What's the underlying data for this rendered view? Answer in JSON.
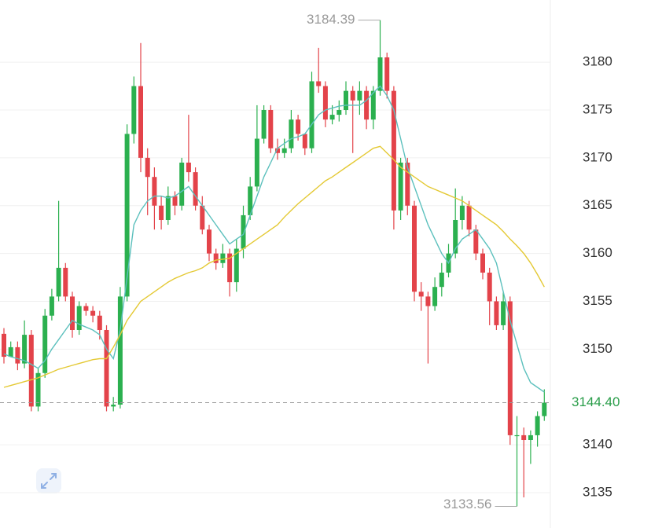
{
  "chart_data": {
    "type": "candlestick",
    "ylim": [
      3131.3,
      3186.5
    ],
    "yticks": [
      3135,
      3140,
      3150,
      3155,
      3160,
      3165,
      3170,
      3175,
      3180
    ],
    "grid": true,
    "up_color": "#2bb04f",
    "down_color": "#e3434a",
    "open": [
      3151.6,
      3149.2,
      3150.2,
      3148.5,
      3151.5,
      3144,
      3147.5,
      3153.5,
      3155.5,
      3158.5,
      3155.5,
      3152,
      3154.5,
      3154,
      3153.5,
      3152,
      3144,
      3144.2,
      3155.5,
      3172.5,
      3177.5,
      3170,
      3168,
      3165,
      3163.5,
      3166,
      3165,
      3169.5,
      3168.5,
      3165,
      3162.5,
      3160,
      3159,
      3160,
      3157,
      3160.5,
      3164,
      3167,
      3172,
      3175,
      3171,
      3170.5,
      3171,
      3174,
      3172.5,
      3171,
      3178,
      3177.5,
      3174,
      3174.5,
      3175,
      3177,
      3176,
      3177,
      3174,
      3177,
      3180.5,
      3177,
      3164.5,
      3169.5,
      3165,
      3156,
      3155.5,
      3154.5,
      3156.5,
      3158,
      3160,
      3163.5,
      3165,
      3162.5,
      3160,
      3158,
      3155,
      3152.5,
      3155,
      3141,
      3141,
      3140.5,
      3141,
      3143
    ],
    "high": [
      3152.2,
      3150.8,
      3150.8,
      3153,
      3152,
      3148,
      3154.2,
      3156.3,
      3165.5,
      3159,
      3156,
      3155,
      3154.8,
      3154.5,
      3154,
      3152.5,
      3145,
      3156.5,
      3173.5,
      3178.5,
      3182,
      3171,
      3169,
      3166,
      3167,
      3166.5,
      3170,
      3174.5,
      3169,
      3166,
      3163,
      3160.5,
      3161,
      3160.5,
      3161.5,
      3165,
      3168,
      3175.5,
      3175.5,
      3175.5,
      3172,
      3172,
      3175,
      3174.5,
      3172.5,
      3179,
      3181.5,
      3178,
      3175.5,
      3176,
      3178,
      3177.5,
      3178,
      3177.5,
      3177.5,
      3184.39,
      3181,
      3177.5,
      3170,
      3170,
      3165.5,
      3157,
      3156,
      3157.5,
      3159,
      3161,
      3166.8,
      3166,
      3165.5,
      3163,
      3160.5,
      3158.5,
      3155.5,
      3156,
      3155.5,
      3143,
      3141.8,
      3141.5,
      3143.5,
      3145.8
    ],
    "low": [
      3148.5,
      3149.5,
      3147.8,
      3148,
      3143.5,
      3143.5,
      3147,
      3153,
      3155,
      3155,
      3151.2,
      3151.5,
      3153.5,
      3152.8,
      3151,
      3143.5,
      3143.5,
      3143.8,
      3155,
      3171.5,
      3168.5,
      3164,
      3162.5,
      3162.5,
      3163,
      3164,
      3164.5,
      3167.5,
      3164.5,
      3162,
      3159.2,
      3158.3,
      3158.5,
      3155.5,
      3156,
      3159.5,
      3163.5,
      3166.5,
      3171.5,
      3170.5,
      3169.8,
      3170,
      3170.5,
      3171.8,
      3170.3,
      3170.5,
      3176.8,
      3173.2,
      3173.5,
      3173.8,
      3174.5,
      3170.5,
      3174.5,
      3173,
      3173,
      3176.5,
      3176.2,
      3162.5,
      3163.5,
      3164,
      3155,
      3154,
      3148.5,
      3154,
      3155.5,
      3157.5,
      3159.5,
      3162.5,
      3161.8,
      3159.3,
      3157.3,
      3152.5,
      3152,
      3152,
      3140,
      3133.56,
      3134.5,
      3138,
      3139.8,
      3142.5
    ],
    "close": [
      3149.2,
      3150.2,
      3148.5,
      3151.5,
      3144,
      3147.5,
      3153.5,
      3155.5,
      3158.5,
      3155.5,
      3152,
      3154.5,
      3154,
      3153.5,
      3152,
      3144,
      3144.2,
      3155.5,
      3172.5,
      3177.5,
      3170,
      3168,
      3165,
      3163.5,
      3166,
      3165,
      3169.5,
      3168.5,
      3165,
      3162.5,
      3160,
      3159,
      3160,
      3157,
      3160.5,
      3164,
      3167,
      3172,
      3175,
      3171,
      3170.5,
      3171,
      3174,
      3172.5,
      3171,
      3178,
      3177.5,
      3174,
      3174.5,
      3175,
      3177,
      3176,
      3177,
      3174,
      3177,
      3180.5,
      3177,
      3164.5,
      3169.5,
      3165,
      3156,
      3155.5,
      3154.5,
      3156.5,
      3158,
      3160,
      3163.5,
      3165,
      3162.5,
      3160,
      3158,
      3155,
      3152.5,
      3155,
      3141,
      3141,
      3140.5,
      3141,
      3143,
      3144.4
    ],
    "series": [
      {
        "color": "#5cc0bd",
        "values": [
          3149.5,
          3149.2,
          3149,
          3148.8,
          3148.4,
          3148,
          3148.8,
          3150,
          3151,
          3152,
          3153,
          3152.6,
          3152.3,
          3152,
          3151.5,
          3150,
          3149,
          3152,
          3157.5,
          3163,
          3164.5,
          3165.5,
          3166,
          3166,
          3165.8,
          3166,
          3166.5,
          3167,
          3166,
          3165,
          3164,
          3163,
          3162,
          3161,
          3161.5,
          3162,
          3164,
          3166,
          3168,
          3169.5,
          3171,
          3171.5,
          3172,
          3172.2,
          3172.5,
          3173.5,
          3174.5,
          3175,
          3175.2,
          3175.4,
          3175.5,
          3175.5,
          3175.5,
          3176,
          3176.8,
          3177.5,
          3176.5,
          3175,
          3172,
          3169,
          3167,
          3165,
          3163,
          3161.5,
          3160,
          3159,
          3160.5,
          3161.5,
          3162,
          3162.5,
          3161.5,
          3160.5,
          3159,
          3156,
          3153,
          3150.5,
          3148,
          3146.5,
          3146,
          3145.5
        ]
      },
      {
        "color": "#e4c934",
        "values": [
          3146,
          3146.2,
          3146.4,
          3146.6,
          3146.8,
          3147,
          3147.3,
          3147.6,
          3147.9,
          3148.1,
          3148.3,
          3148.5,
          3148.7,
          3148.9,
          3149,
          3149,
          3150.2,
          3151.5,
          3153,
          3154,
          3155,
          3155.5,
          3156,
          3156.5,
          3157,
          3157.4,
          3157.7,
          3158,
          3158.2,
          3158.5,
          3159,
          3159.3,
          3159.4,
          3159.5,
          3160,
          3160.5,
          3161,
          3161.5,
          3162,
          3162.5,
          3163,
          3163.8,
          3164.5,
          3165.2,
          3165.8,
          3166.4,
          3167,
          3167.6,
          3168,
          3168.5,
          3169,
          3169.5,
          3170,
          3170.5,
          3171,
          3171.2,
          3170.5,
          3169.8,
          3169,
          3168.5,
          3168,
          3167.5,
          3167,
          3166.7,
          3166.4,
          3166.1,
          3165.8,
          3165.5,
          3165,
          3164.5,
          3164,
          3163.5,
          3163,
          3162.3,
          3161.5,
          3160.8,
          3160,
          3159,
          3157.8,
          3156.5
        ]
      }
    ],
    "last_price": {
      "value": 3144.4,
      "label": "3144.40"
    }
  }
}
